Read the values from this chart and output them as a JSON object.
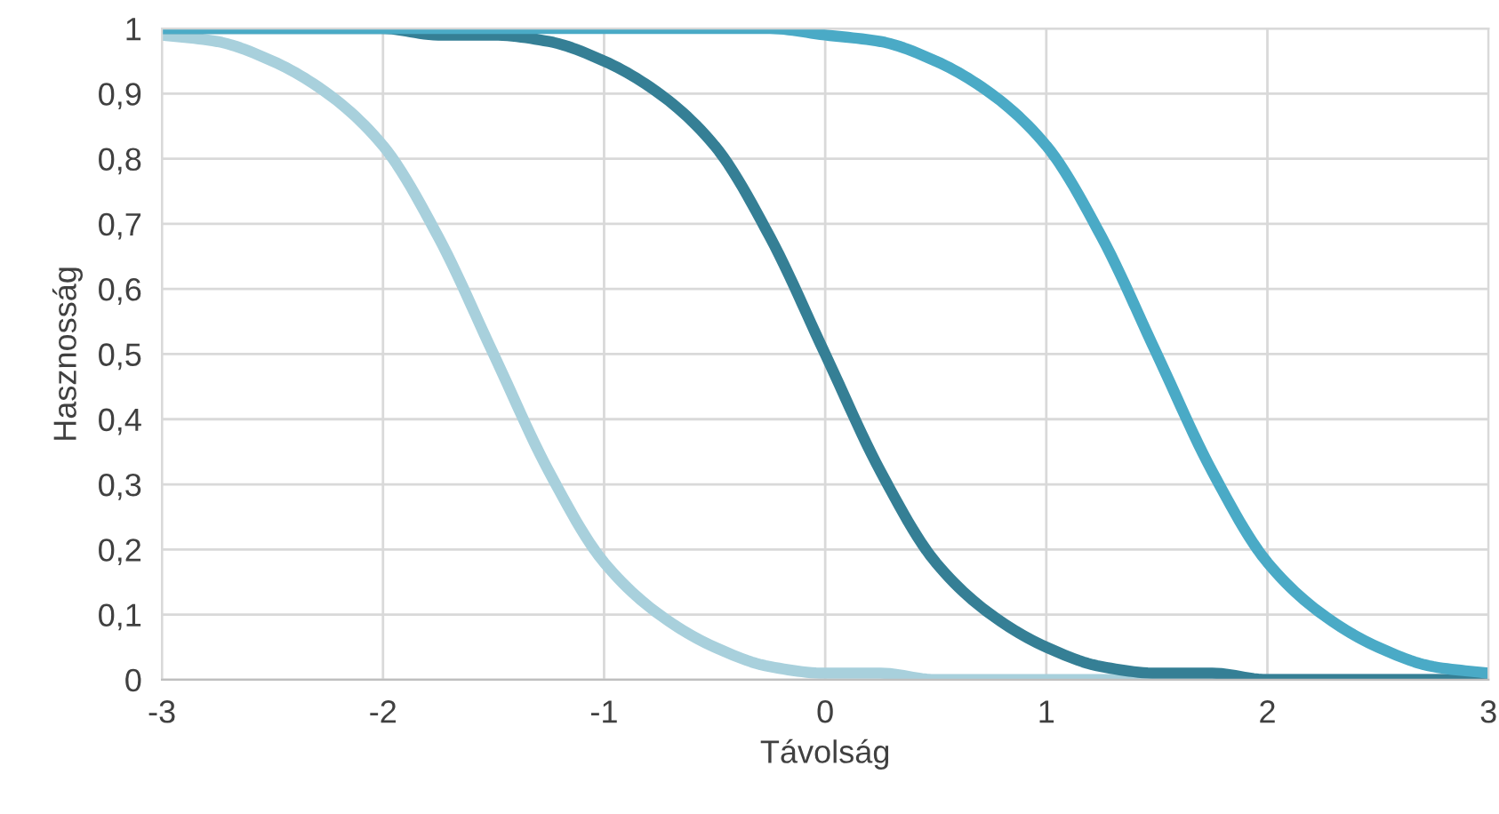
{
  "chart_data": {
    "type": "line",
    "xlabel": "Távolság",
    "ylabel": "Hasznosság",
    "xlim": [
      -3,
      3
    ],
    "xticks": [
      {
        "value": -3,
        "label": "-3"
      },
      {
        "value": -2,
        "label": "-2"
      },
      {
        "value": -1,
        "label": "-1"
      },
      0,
      1,
      2,
      3
    ],
    "ylim": [
      0,
      1
    ],
    "yticks": [
      0,
      {
        "value": 0.1,
        "label": "0,1"
      },
      {
        "value": 0.2,
        "label": "0,2"
      },
      {
        "value": 0.3,
        "label": "0,3"
      },
      {
        "value": 0.4,
        "label": "0,4"
      },
      {
        "value": 0.5,
        "label": "0,5"
      },
      {
        "value": 0.6,
        "label": "0,6"
      },
      {
        "value": 0.7,
        "label": "0,7"
      },
      {
        "value": 0.8,
        "label": "0,8"
      },
      {
        "value": 0.9,
        "label": "0,9"
      },
      1
    ],
    "grid": true,
    "legend": false,
    "marker": "none",
    "line_style": "solid",
    "x": [
      -3,
      -2.75,
      -2.5,
      -2.25,
      -2,
      -1.75,
      -1.5,
      -1.25,
      -1,
      -0.75,
      -0.5,
      -0.25,
      0,
      0.25,
      0.5,
      0.75,
      1,
      1.25,
      1.5,
      1.75,
      2,
      2.25,
      2.5,
      2.75,
      3
    ],
    "series": [
      {
        "color": "#a8d0dc",
        "values": [
          0.99,
          0.98,
          0.95,
          0.9,
          0.82,
          0.68,
          0.5,
          0.32,
          0.18,
          0.1,
          0.05,
          0.02,
          0.01,
          0.01,
          0,
          0,
          0,
          0,
          0,
          0,
          0,
          0,
          0,
          0,
          0
        ]
      },
      {
        "color": "#357f95",
        "values": [
          1,
          1,
          1,
          1,
          1,
          0.99,
          0.99,
          0.98,
          0.95,
          0.9,
          0.82,
          0.68,
          0.5,
          0.32,
          0.18,
          0.1,
          0.05,
          0.02,
          0.01,
          0.01,
          0,
          0,
          0,
          0,
          0
        ]
      },
      {
        "color": "#4aaac6",
        "values": [
          1,
          1,
          1,
          1,
          1,
          1,
          1,
          1,
          1,
          1,
          1,
          1,
          0.99,
          0.98,
          0.95,
          0.9,
          0.82,
          0.68,
          0.5,
          0.32,
          0.18,
          0.1,
          0.05,
          0.02,
          0.01
        ]
      }
    ]
  }
}
